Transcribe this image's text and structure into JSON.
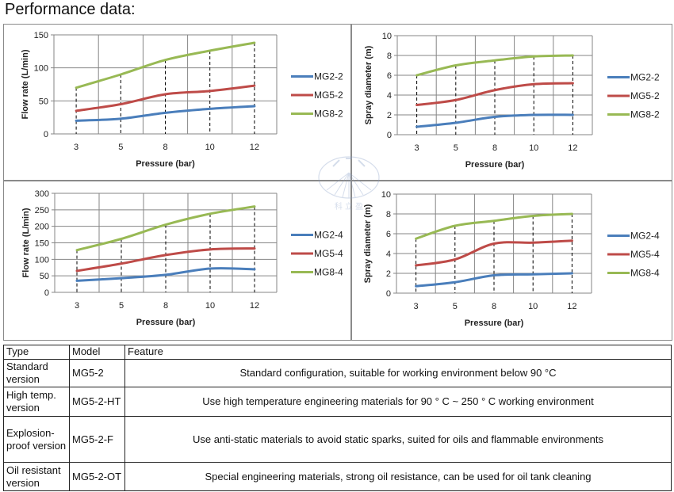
{
  "title": "Performance data:",
  "watermark": "科 立 盈",
  "colors": {
    "MG2": "#4a7ebb",
    "MG5": "#be4b48",
    "MG8": "#98b954",
    "grid": "#868686"
  },
  "chart_data": [
    {
      "type": "line",
      "title": "",
      "xlabel": "Pressure (bar)",
      "ylabel": "Flow rate (L/min)",
      "categories": [
        "3",
        "5",
        "8",
        "10",
        "12"
      ],
      "ylim": [
        0,
        150
      ],
      "yticks": [
        "0",
        "50",
        "100",
        "150"
      ],
      "grid": true,
      "legend": "right",
      "series": [
        {
          "name": "MG2-2",
          "values": [
            20,
            23,
            32,
            38,
            42
          ]
        },
        {
          "name": "MG5-2",
          "values": [
            35,
            45,
            60,
            65,
            73
          ]
        },
        {
          "name": "MG8-2",
          "values": [
            70,
            90,
            112,
            126,
            138
          ]
        }
      ]
    },
    {
      "type": "line",
      "title": "",
      "xlabel": "Pressure (bar)",
      "ylabel": "Spray diameter (m)",
      "categories": [
        "3",
        "5",
        "8",
        "10",
        "12"
      ],
      "ylim": [
        0,
        10
      ],
      "yticks": [
        "0",
        "2",
        "4",
        "6",
        "8",
        "10"
      ],
      "grid": true,
      "legend": "right",
      "series": [
        {
          "name": "MG2-2",
          "values": [
            0.8,
            1.2,
            1.8,
            2.0,
            2.0
          ]
        },
        {
          "name": "MG5-2",
          "values": [
            3.0,
            3.5,
            4.5,
            5.1,
            5.2
          ]
        },
        {
          "name": "MG8-2",
          "values": [
            6.0,
            7.0,
            7.5,
            7.9,
            8.0
          ]
        }
      ]
    },
    {
      "type": "line",
      "title": "",
      "xlabel": "Pressure (bar)",
      "ylabel": "Flow rate (L/min)",
      "categories": [
        "3",
        "5",
        "8",
        "10",
        "12"
      ],
      "ylim": [
        0,
        300
      ],
      "yticks": [
        "0",
        "50",
        "100",
        "150",
        "200",
        "250",
        "300"
      ],
      "grid": true,
      "legend": "right",
      "series": [
        {
          "name": "MG2-4",
          "values": [
            35,
            43,
            53,
            72,
            70
          ]
        },
        {
          "name": "MG5-4",
          "values": [
            65,
            87,
            113,
            130,
            133
          ]
        },
        {
          "name": "MG8-4",
          "values": [
            128,
            162,
            205,
            238,
            260
          ]
        }
      ]
    },
    {
      "type": "line",
      "title": "",
      "xlabel": "Pressure (bar)",
      "ylabel": "Spray diameter (m)",
      "categories": [
        "3",
        "5",
        "8",
        "10",
        "12"
      ],
      "ylim": [
        0,
        10
      ],
      "yticks": [
        "0",
        "2",
        "4",
        "6",
        "8",
        "10"
      ],
      "grid": true,
      "legend": "right",
      "series": [
        {
          "name": "MG2-4",
          "values": [
            0.7,
            1.1,
            1.8,
            1.9,
            2.0
          ]
        },
        {
          "name": "MG5-4",
          "values": [
            2.8,
            3.4,
            5.0,
            5.1,
            5.3
          ]
        },
        {
          "name": "MG8-4",
          "values": [
            5.5,
            6.8,
            7.3,
            7.8,
            8.0
          ]
        }
      ]
    }
  ],
  "table": {
    "headers": [
      "Type",
      "Model",
      "Feature"
    ],
    "rows": [
      {
        "type": "Standard version",
        "model": "MG5-2",
        "feature": "Standard configuration, suitable for working environment below 90 °C"
      },
      {
        "type": "High temp. version",
        "model": "MG5-2-HT",
        "feature": "Use high temperature engineering materials for 90 ° C ~ 250 ° C working environment"
      },
      {
        "type": "Explosion-proof version",
        "model": "MG5-2-F",
        "feature": "Use anti-static materials to avoid static sparks, suited for oils and flammable environments"
      },
      {
        "type": "Oil resistant version",
        "model": "MG5-2-OT",
        "feature": "Special engineering materials, strong oil resistance, can be used for oil tank cleaning"
      }
    ]
  }
}
